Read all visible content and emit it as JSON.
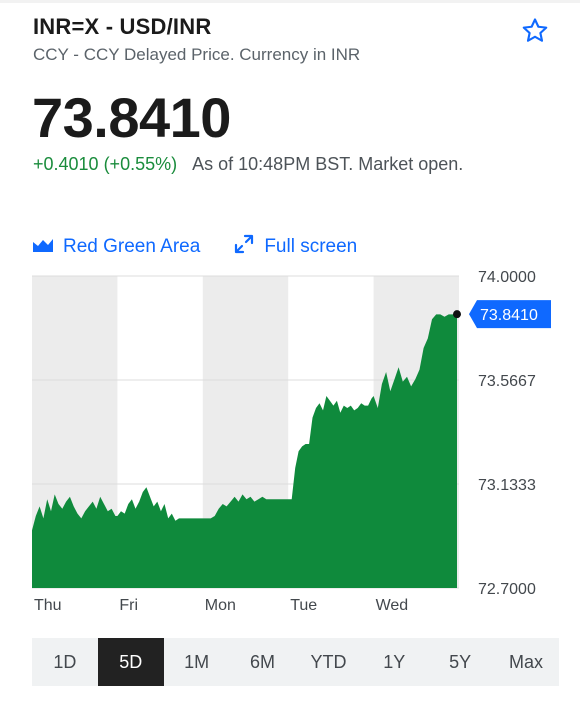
{
  "header": {
    "ticker": "INR=X - USD/INR",
    "subtitle": "CCY - CCY Delayed Price. Currency in INR",
    "favorite_icon": "star-outline-icon"
  },
  "quote": {
    "price": "73.8410",
    "change": "+0.4010 (+0.55%)",
    "as_of": "As of 10:48PM BST. Market open."
  },
  "chart_tools": {
    "chart_type_label": "Red Green Area",
    "chart_type_icon": "area-chart-icon",
    "fullscreen_label": "Full screen",
    "fullscreen_icon": "expand-arrows-icon"
  },
  "colors": {
    "accent": "#0f69ff",
    "positive": "#1a8c3c",
    "area_fill": "#0f8a3c",
    "day_band": "#ececec",
    "price_flag": "#0f69ff"
  },
  "chart_data": {
    "type": "area",
    "x_labels": [
      "Thu",
      "Fri",
      "Mon",
      "Tue",
      "Wed"
    ],
    "y_ticks": [
      "74.0000",
      "73.5667",
      "73.1333",
      "72.7000"
    ],
    "ylim": [
      72.7,
      74.0
    ],
    "current_label": "73.8410",
    "current_value": 73.841,
    "grid": true,
    "days": [
      {
        "label": "Thu",
        "values": [
          72.94,
          73.0,
          73.04,
          72.99,
          73.07,
          73.02,
          73.09,
          73.05,
          73.03,
          73.06,
          73.08,
          73.04,
          73.01,
          72.99,
          73.02,
          73.04,
          73.06,
          73.03,
          73.08,
          73.05,
          73.02,
          73.03,
          73.0
        ]
      },
      {
        "label": "Fri",
        "values": [
          73.0,
          73.02,
          73.01,
          73.05,
          73.07,
          73.03,
          73.06,
          73.1,
          73.12,
          73.08,
          73.04,
          73.06,
          73.02,
          73.05,
          72.99,
          73.01,
          72.98,
          72.99,
          72.99,
          72.99,
          72.99,
          72.99,
          72.99,
          72.99
        ]
      },
      {
        "label": "Mon",
        "values": [
          72.99,
          72.99,
          72.99,
          73.0,
          73.03,
          73.05,
          73.04,
          73.06,
          73.08,
          73.06,
          73.09,
          73.07,
          73.08,
          73.06,
          73.07,
          73.08,
          73.07,
          73.07,
          73.07,
          73.07,
          73.07,
          73.07
        ]
      },
      {
        "label": "Tue",
        "values": [
          73.07,
          73.07,
          73.2,
          73.27,
          73.29,
          73.3,
          73.3,
          73.41,
          73.45,
          73.47,
          73.44,
          73.5,
          73.48,
          73.46,
          73.48,
          73.43,
          73.46,
          73.45,
          73.46,
          73.44,
          73.45,
          73.47,
          73.46,
          73.46,
          73.49
        ]
      },
      {
        "label": "Wed",
        "values": [
          73.5,
          73.45,
          73.55,
          73.6,
          73.52,
          73.57,
          73.62,
          73.56,
          73.58,
          73.54,
          73.57,
          73.61,
          73.7,
          73.74,
          73.82,
          73.84,
          73.84,
          73.83,
          73.84,
          73.84,
          73.841
        ]
      }
    ]
  },
  "ranges": {
    "items": [
      "1D",
      "5D",
      "1M",
      "6M",
      "YTD",
      "1Y",
      "5Y",
      "Max"
    ],
    "selected": "5D"
  }
}
